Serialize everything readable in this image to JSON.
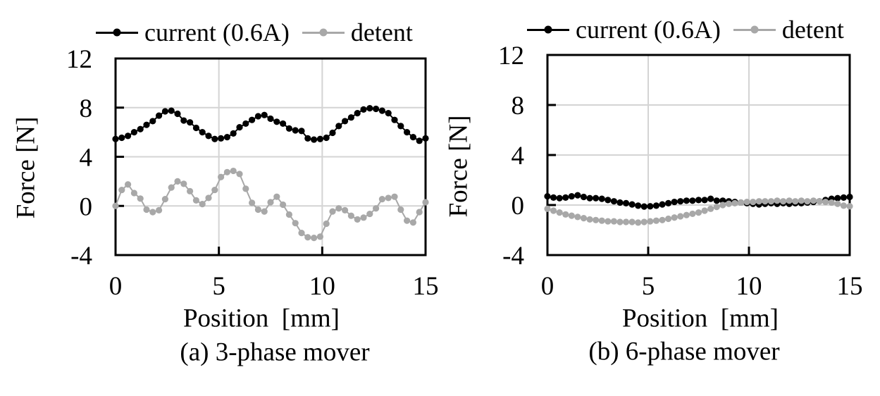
{
  "colors": {
    "background": "#ffffff",
    "axis": "#000000",
    "grid": "#d4d4d4",
    "series_current": "#000000",
    "series_detent": "#a8a8a8"
  },
  "chart_data": [
    {
      "type": "line",
      "caption": "(a) 3-phase mover",
      "xlabel": "Position  [mm]",
      "ylabel": "Force [N]",
      "xlim": [
        0,
        15
      ],
      "ylim": [
        -4,
        12
      ],
      "x_ticks": [
        0,
        5,
        10,
        15
      ],
      "y_ticks": [
        12,
        8,
        4,
        0,
        -4
      ],
      "grid_x": [
        5,
        10
      ],
      "grid_y": [
        0,
        4,
        8
      ],
      "x_start": 0,
      "x_step": 0.3,
      "series": [
        {
          "name": "current (0.6A)",
          "color": "#000000",
          "values": [
            5.45,
            5.55,
            5.7,
            6.0,
            6.25,
            6.6,
            6.9,
            7.35,
            7.7,
            7.75,
            7.5,
            6.95,
            6.8,
            6.35,
            6.0,
            5.7,
            5.45,
            5.5,
            5.6,
            5.9,
            6.4,
            6.7,
            7.0,
            7.3,
            7.4,
            7.1,
            6.85,
            6.7,
            6.3,
            6.15,
            6.1,
            5.5,
            5.4,
            5.45,
            5.55,
            5.95,
            6.5,
            6.9,
            7.2,
            7.55,
            7.85,
            7.95,
            7.9,
            7.75,
            7.55,
            7.0,
            6.5,
            6.0,
            5.6,
            5.3,
            5.5
          ]
        },
        {
          "name": "detent",
          "color": "#a8a8a8",
          "values": [
            0.0,
            1.3,
            1.75,
            1.05,
            0.6,
            -0.3,
            -0.5,
            -0.35,
            0.55,
            1.5,
            2.0,
            1.8,
            1.2,
            0.45,
            0.15,
            0.65,
            1.3,
            2.35,
            2.75,
            2.85,
            2.6,
            1.4,
            0.25,
            -0.3,
            -0.45,
            0.3,
            0.75,
            0.1,
            -0.7,
            -1.4,
            -2.2,
            -2.55,
            -2.6,
            -2.5,
            -1.45,
            -0.45,
            -0.2,
            -0.35,
            -0.8,
            -1.1,
            -0.95,
            -0.65,
            -0.2,
            0.55,
            0.65,
            0.75,
            -0.3,
            -1.2,
            -1.35,
            -0.5,
            0.3
          ]
        }
      ]
    },
    {
      "type": "line",
      "caption": "(b) 6-phase mover",
      "xlabel": "Position  [mm]",
      "ylabel": "Force [N]",
      "xlim": [
        0,
        15
      ],
      "ylim": [
        -4,
        12
      ],
      "x_ticks": [
        0,
        5,
        10,
        15
      ],
      "y_ticks": [
        12,
        8,
        4,
        0,
        -4
      ],
      "grid_x": [
        5,
        10
      ],
      "grid_y": [
        0,
        4,
        8
      ],
      "x_start": 0,
      "x_step": 0.3,
      "series": [
        {
          "name": "current (0.6A)",
          "color": "#000000",
          "values": [
            0.7,
            0.6,
            0.55,
            0.6,
            0.7,
            0.78,
            0.65,
            0.55,
            0.55,
            0.5,
            0.4,
            0.3,
            0.2,
            0.15,
            0.05,
            -0.05,
            -0.12,
            -0.1,
            -0.05,
            0.05,
            0.15,
            0.25,
            0.3,
            0.35,
            0.35,
            0.4,
            0.4,
            0.5,
            0.35,
            0.35,
            0.3,
            0.25,
            0.2,
            0.15,
            0.1,
            0.05,
            0.1,
            0.15,
            0.1,
            0.15,
            0.1,
            0.15,
            0.15,
            0.2,
            0.25,
            0.3,
            0.4,
            0.5,
            0.55,
            0.6,
            0.65
          ]
        },
        {
          "name": "detent",
          "color": "#a8a8a8",
          "values": [
            -0.3,
            -0.45,
            -0.6,
            -0.75,
            -0.85,
            -0.95,
            -1.05,
            -1.15,
            -1.2,
            -1.25,
            -1.3,
            -1.3,
            -1.35,
            -1.35,
            -1.35,
            -1.4,
            -1.35,
            -1.3,
            -1.25,
            -1.2,
            -1.1,
            -1.0,
            -0.9,
            -0.8,
            -0.7,
            -0.6,
            -0.45,
            -0.3,
            -0.15,
            0.0,
            0.1,
            0.15,
            0.2,
            0.25,
            0.25,
            0.3,
            0.3,
            0.3,
            0.35,
            0.3,
            0.35,
            0.3,
            0.35,
            0.3,
            0.35,
            0.3,
            0.25,
            0.2,
            0.1,
            -0.05,
            -0.1
          ]
        }
      ]
    }
  ]
}
